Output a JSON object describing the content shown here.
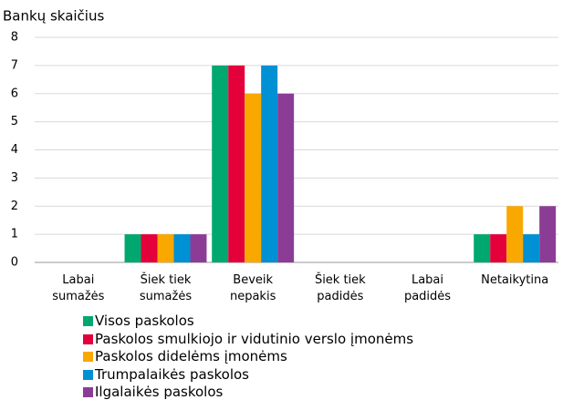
{
  "chart_data": {
    "type": "bar",
    "y_label": "Bankų skaičius",
    "categories": [
      "Labai\nsumažės",
      "Šiek tiek\nsumažės",
      "Beveik\nnepakis",
      "Šiek tiek\npadidės",
      "Labai\npadidės",
      "Netaikytina"
    ],
    "series": [
      {
        "name": "Visos paskolos",
        "color": "#00a870",
        "values": [
          0,
          1,
          7,
          0,
          0,
          1
        ]
      },
      {
        "name": "Paskolos smulkiojo ir vidutinio verslo įmonėms",
        "color": "#e4003a",
        "values": [
          0,
          1,
          7,
          0,
          0,
          1
        ]
      },
      {
        "name": "Paskolos didelėms įmonėms",
        "color": "#f9a800",
        "values": [
          0,
          1,
          6,
          0,
          0,
          2
        ]
      },
      {
        "name": "Trumpalaikės paskolos",
        "color": "#0090d4",
        "values": [
          0,
          1,
          7,
          0,
          0,
          1
        ]
      },
      {
        "name": "Ilgalaikės paskolos",
        "color": "#8b3d96",
        "values": [
          0,
          1,
          6,
          0,
          0,
          2
        ]
      }
    ],
    "ylim": [
      0,
      8
    ],
    "yticks": [
      0,
      1,
      2,
      3,
      4,
      5,
      6,
      7,
      8
    ],
    "grid": true
  }
}
